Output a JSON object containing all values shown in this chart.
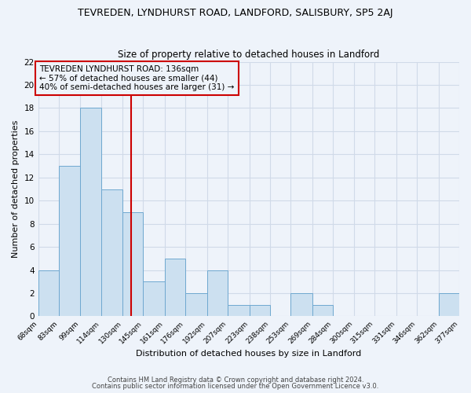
{
  "title": "TEVREDEN, LYNDHURST ROAD, LANDFORD, SALISBURY, SP5 2AJ",
  "subtitle": "Size of property relative to detached houses in Landford",
  "xlabel": "Distribution of detached houses by size in Landford",
  "ylabel": "Number of detached properties",
  "bar_color": "#cce0f0",
  "bar_edge_color": "#6fa8d0",
  "bin_edges": [
    68,
    83,
    99,
    114,
    130,
    145,
    161,
    176,
    192,
    207,
    223,
    238,
    253,
    269,
    284,
    300,
    315,
    331,
    346,
    362,
    377
  ],
  "bar_counts": [
    4,
    13,
    18,
    11,
    9,
    3,
    5,
    2,
    4,
    1,
    1,
    0,
    2,
    1,
    0,
    0,
    0,
    0,
    0,
    2
  ],
  "tick_labels": [
    "68sqm",
    "83sqm",
    "99sqm",
    "114sqm",
    "130sqm",
    "145sqm",
    "161sqm",
    "176sqm",
    "192sqm",
    "207sqm",
    "223sqm",
    "238sqm",
    "253sqm",
    "269sqm",
    "284sqm",
    "300sqm",
    "315sqm",
    "331sqm",
    "346sqm",
    "362sqm",
    "377sqm"
  ],
  "ylim": [
    0,
    22
  ],
  "yticks": [
    0,
    2,
    4,
    6,
    8,
    10,
    12,
    14,
    16,
    18,
    20,
    22
  ],
  "property_size": 136,
  "vline_color": "#cc0000",
  "annotation_line1": "TEVREDEN LYNDHURST ROAD: 136sqm",
  "annotation_line2": "← 57% of detached houses are smaller (44)",
  "annotation_line3": "40% of semi-detached houses are larger (31) →",
  "footnote1": "Contains HM Land Registry data © Crown copyright and database right 2024.",
  "footnote2": "Contains public sector information licensed under the Open Government Licence v3.0.",
  "background_color": "#eef3fa",
  "grid_color": "#d0dae8"
}
